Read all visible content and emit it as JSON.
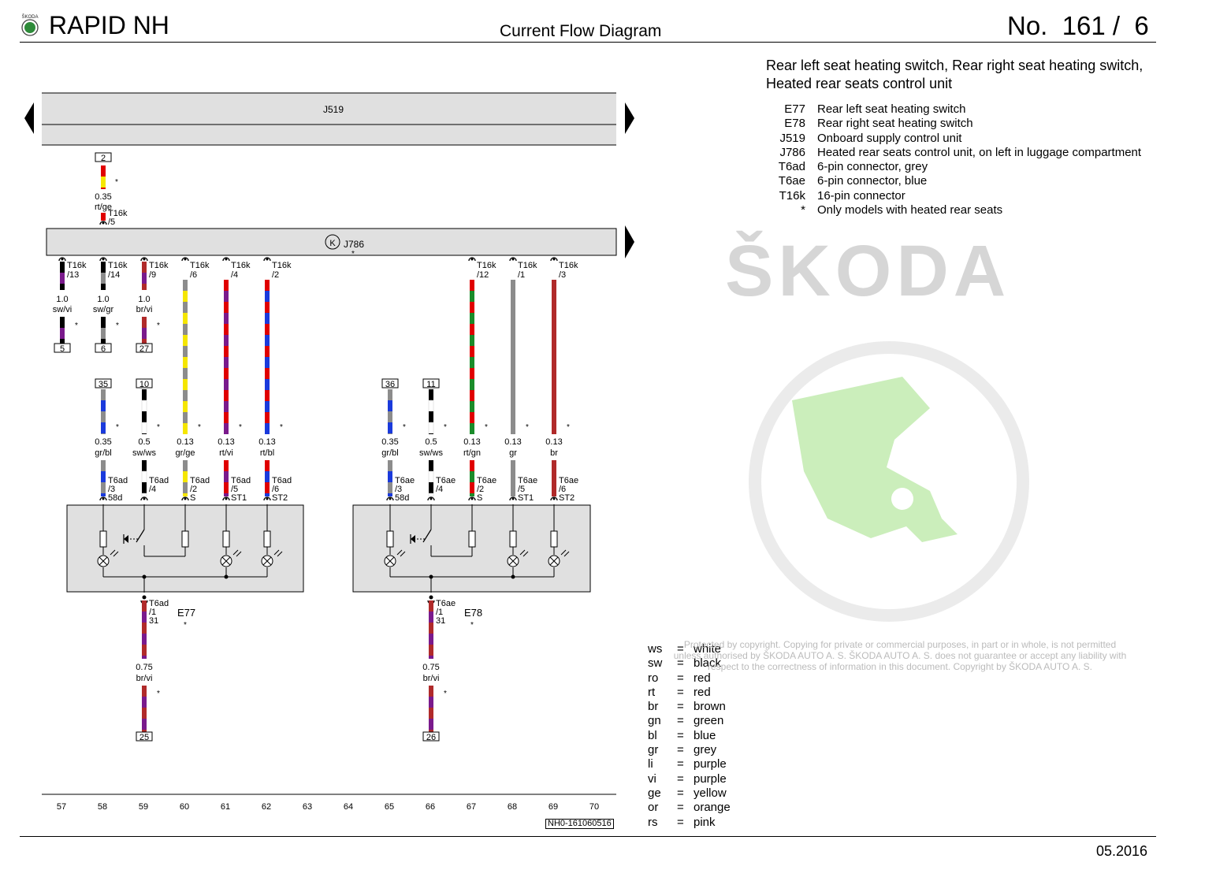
{
  "header": {
    "title": "RAPID NH",
    "subtitle": "Current Flow Diagram",
    "page_number": "No.  161 /  6",
    "brand_small": "ŠKODA"
  },
  "heading": {
    "line1": "Rear left seat heating switch, Rear right seat heating switch,",
    "line2": "Heated rear seats control unit"
  },
  "legend": [
    {
      "code": "E77",
      "desc": "Rear left seat heating switch"
    },
    {
      "code": "E78",
      "desc": "Rear right seat heating switch"
    },
    {
      "code": "J519",
      "desc": "Onboard supply control unit"
    },
    {
      "code": "J786",
      "desc": "Heated rear seats control unit, on left in luggage compartment"
    },
    {
      "code": "T6ad",
      "desc": "6-pin connector, grey"
    },
    {
      "code": "T6ae",
      "desc": "6-pin connector, blue"
    },
    {
      "code": "T16k",
      "desc": "16-pin connector"
    },
    {
      "code": "*",
      "desc": "Only models with heated rear seats"
    }
  ],
  "color_codes": [
    {
      "code": "ws",
      "name": "white"
    },
    {
      "code": "sw",
      "name": "black"
    },
    {
      "code": "ro",
      "name": "red"
    },
    {
      "code": "rt",
      "name": "red"
    },
    {
      "code": "br",
      "name": "brown"
    },
    {
      "code": "gn",
      "name": "green"
    },
    {
      "code": "bl",
      "name": "blue"
    },
    {
      "code": "gr",
      "name": "grey"
    },
    {
      "code": "li",
      "name": "purple"
    },
    {
      "code": "vi",
      "name": "purple"
    },
    {
      "code": "ge",
      "name": "yellow"
    },
    {
      "code": "or",
      "name": "orange"
    },
    {
      "code": "rs",
      "name": "pink"
    }
  ],
  "watermark": "Protected by copyright. Copying for private or commercial purposes, in part or in whole, is not permitted unless authorised by ŠKODA AUTO A. S. ŠKODA AUTO A. S. does not guarantee or accept any liability with respect to the correctness of information in this document. Copyright by ŠKODA AUTO A. S.",
  "skoda_logo_text": "ŠKODA",
  "diagram": {
    "j519_label": "J519",
    "j786_label": "J786",
    "k_symbol": "K",
    "top_wire": {
      "terminal": "2",
      "size": "0.35",
      "color": "rt/ge",
      "connector": "T16k",
      "pin": "/5",
      "colors": [
        "#e00000",
        "#f5e600"
      ]
    },
    "upper_wires": [
      {
        "pin": "/13",
        "size": "1.0",
        "color": "sw/vi",
        "terminal": "5",
        "colors": [
          "#000000",
          "#7a1a8c"
        ]
      },
      {
        "pin": "/14",
        "size": "1.0",
        "color": "sw/gr",
        "terminal": "6",
        "colors": [
          "#000000",
          "#8c8c8c"
        ]
      },
      {
        "pin": "/9",
        "size": "1.0",
        "color": "br/vi",
        "terminal": "27",
        "colors": [
          "#b02a2a",
          "#7a1a8c"
        ]
      },
      {
        "pin": "/6"
      },
      {
        "pin": "/4"
      },
      {
        "pin": "/2"
      },
      {
        "pin": "/12"
      },
      {
        "pin": "/1"
      },
      {
        "pin": "/3"
      }
    ],
    "switch_wires": [
      {
        "terminal": "35",
        "size": "0.35",
        "color": "gr/bl",
        "conn": "T6ad",
        "pin": "/3",
        "sig": "58d",
        "colors": [
          "#8c8c8c",
          "#1a3adc"
        ]
      },
      {
        "terminal": "10",
        "size": "0.5",
        "color": "sw/ws",
        "conn": "T6ad",
        "pin": "/4",
        "sig": "",
        "colors": [
          "#000000",
          "#ffffff"
        ]
      },
      {
        "terminal": "",
        "size": "0.13",
        "color": "gr/ge",
        "conn": "T6ad",
        "pin": "/2",
        "sig": "S",
        "colors": [
          "#8c8c8c",
          "#f5e600"
        ]
      },
      {
        "terminal": "",
        "size": "0.13",
        "color": "rt/vi",
        "conn": "T6ad",
        "pin": "/5",
        "sig": "ST1",
        "colors": [
          "#e00000",
          "#7a1a8c"
        ]
      },
      {
        "terminal": "",
        "size": "0.13",
        "color": "rt/bl",
        "conn": "T6ad",
        "pin": "/6",
        "sig": "ST2",
        "colors": [
          "#e00000",
          "#1a3adc"
        ]
      },
      {
        "terminal": "36",
        "size": "0.35",
        "color": "gr/bl",
        "conn": "T6ae",
        "pin": "/3",
        "sig": "58d",
        "colors": [
          "#8c8c8c",
          "#1a3adc"
        ]
      },
      {
        "terminal": "11",
        "size": "0.5",
        "color": "sw/ws",
        "conn": "T6ae",
        "pin": "/4",
        "sig": "",
        "colors": [
          "#000000",
          "#ffffff"
        ]
      },
      {
        "terminal": "",
        "size": "0.13",
        "color": "rt/gn",
        "conn": "T6ae",
        "pin": "/2",
        "sig": "S",
        "colors": [
          "#e00000",
          "#1a8c2a"
        ]
      },
      {
        "terminal": "",
        "size": "0.13",
        "color": "gr",
        "conn": "T6ae",
        "pin": "/5",
        "sig": "ST1",
        "colors": [
          "#8c8c8c",
          "#8c8c8c"
        ]
      },
      {
        "terminal": "",
        "size": "0.13",
        "color": "br",
        "conn": "T6ae",
        "pin": "/6",
        "sig": "ST2",
        "colors": [
          "#b02a2a",
          "#b02a2a"
        ]
      }
    ],
    "ground_wires": [
      {
        "component": "E77",
        "conn": "T6ad",
        "pin": "/1",
        "sig": "31",
        "size": "0.75",
        "color": "br/vi",
        "terminal": "25",
        "colors": [
          "#b02a2a",
          "#7a1a8c"
        ]
      },
      {
        "component": "E78",
        "conn": "T6ae",
        "pin": "/1",
        "sig": "31",
        "size": "0.75",
        "color": "br/vi",
        "terminal": "26",
        "colors": [
          "#b02a2a",
          "#7a1a8c"
        ]
      }
    ],
    "asterisk": "*",
    "track_numbers": [
      "57",
      "58",
      "59",
      "60",
      "61",
      "62",
      "63",
      "64",
      "65",
      "66",
      "67",
      "68",
      "69",
      "70"
    ],
    "reference": "NH0-161060516"
  },
  "date": "05.2016"
}
